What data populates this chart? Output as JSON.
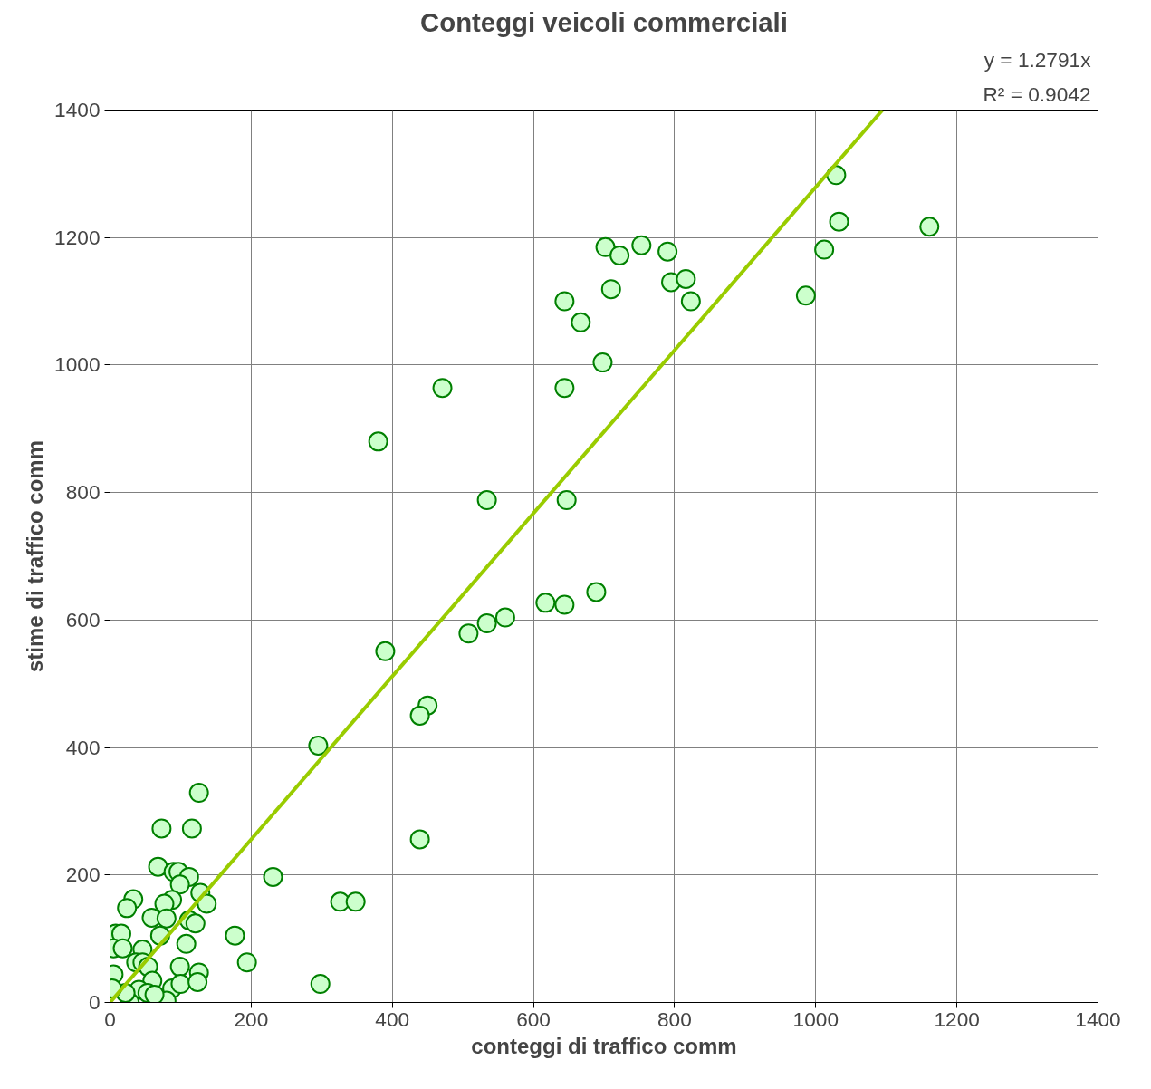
{
  "chart_data": {
    "type": "scatter",
    "title": "Conteggi veicoli commerciali",
    "xlabel": "conteggi di traffico comm",
    "ylabel": "stime di traffico comm",
    "annotations": [
      "y = 1.2791x",
      "R² = 0.9042"
    ],
    "xlim": [
      0,
      1400
    ],
    "ylim": [
      0,
      1400
    ],
    "xticks": [
      0,
      200,
      400,
      600,
      800,
      1000,
      1200,
      1400
    ],
    "yticks": [
      0,
      200,
      400,
      600,
      800,
      1000,
      1200,
      1400
    ],
    "grid": true,
    "marker": "circle",
    "series": [
      {
        "color": "#ccffcc",
        "x": [
          1029,
          1033,
          1161,
          1012,
          986,
          702,
          753,
          722,
          790,
          795,
          816,
          823,
          710,
          644,
          667,
          698,
          644,
          471,
          380,
          534,
          647,
          689,
          617,
          644,
          560,
          534,
          508,
          390,
          450,
          439,
          295,
          439,
          231,
          326,
          348,
          298,
          194,
          177,
          126,
          73,
          116,
          68,
          90,
          97,
          112,
          99,
          128,
          137,
          88,
          77,
          33,
          24,
          59,
          80,
          112,
          121,
          71,
          108,
          8,
          16,
          5,
          18,
          46,
          37,
          46,
          54,
          99,
          126,
          5,
          60,
          88,
          100,
          124,
          41,
          53,
          80,
          28,
          22,
          63,
          3
        ],
        "values": [
          1298,
          1225,
          1217,
          1181,
          1109,
          1185,
          1188,
          1172,
          1178,
          1130,
          1135,
          1100,
          1119,
          1100,
          1067,
          1004,
          964,
          964,
          880,
          788,
          788,
          644,
          627,
          624,
          604,
          595,
          579,
          551,
          466,
          450,
          403,
          256,
          197,
          158,
          158,
          29,
          63,
          105,
          329,
          273,
          273,
          213,
          205,
          205,
          197,
          185,
          172,
          155,
          161,
          155,
          162,
          148,
          133,
          132,
          129,
          124,
          105,
          92,
          108,
          108,
          85,
          85,
          83,
          63,
          63,
          56,
          56,
          47,
          44,
          34,
          22,
          29,
          32,
          20,
          15,
          3,
          0,
          15,
          12,
          22
        ]
      },
      {
        "type": "line",
        "marker": "none",
        "color": "#99cc00",
        "x": [
          0,
          1094.5
        ],
        "values": [
          0,
          1400
        ]
      }
    ]
  }
}
